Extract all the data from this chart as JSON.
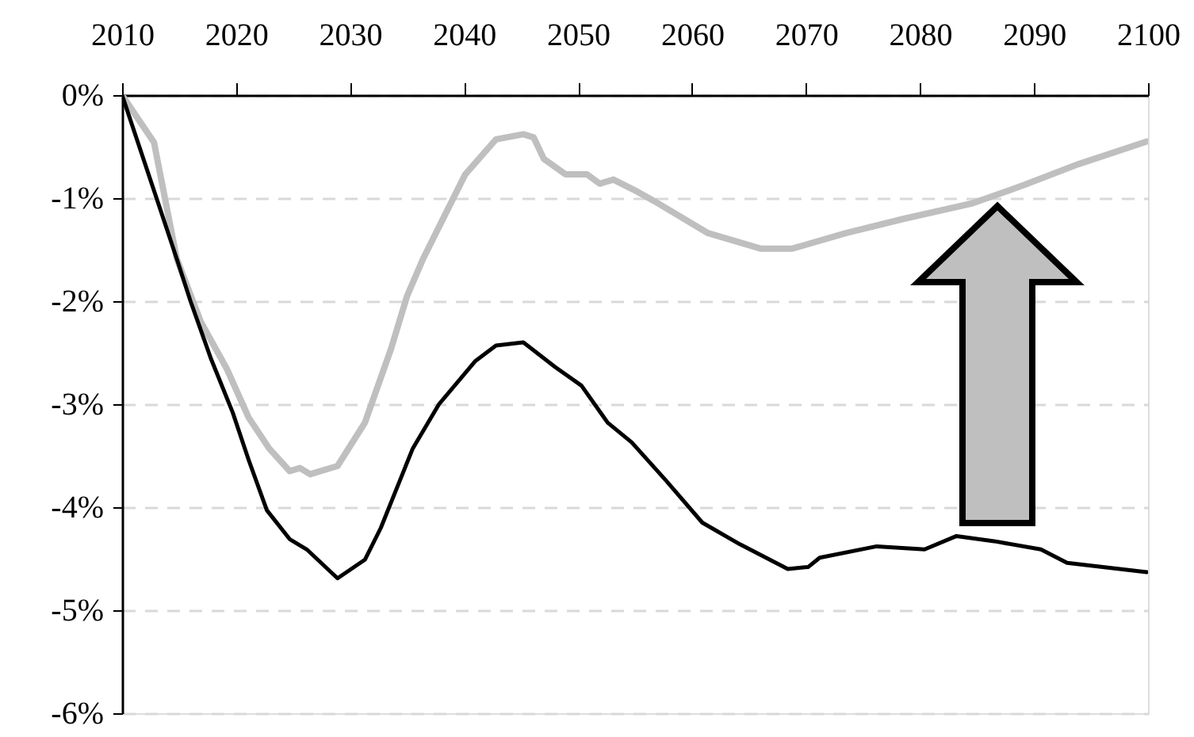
{
  "chart_data": {
    "type": "line",
    "series": [
      {
        "color": "#000000",
        "x": [
          2010,
          2014.8,
          2016,
          2017.8,
          2019.7,
          2021.1,
          2022.7,
          2024.7,
          2026.2,
          2028.9,
          2031.3,
          2032.7,
          2035.5,
          2037.8,
          2041,
          2042.8,
          2045.2,
          2048,
          2050.3,
          2052.6,
          2054.7,
          2057.7,
          2060.9,
          2064.2,
          2068.4,
          2070.2,
          2071.2,
          2076.2,
          2080.4,
          2083.2,
          2086.5,
          2090.6,
          2092.9,
          2099.9
        ],
        "values": [
          0,
          -1.59,
          -2.0,
          -2.56,
          -3.08,
          -3.54,
          -4.03,
          -4.31,
          -4.41,
          -4.69,
          -4.51,
          -4.2,
          -3.43,
          -3.0,
          -2.58,
          -2.43,
          -2.4,
          -2.64,
          -2.82,
          -3.18,
          -3.37,
          -3.74,
          -4.15,
          -4.36,
          -4.6,
          -4.58,
          -4.49,
          -4.38,
          -4.41,
          -4.28,
          -4.33,
          -4.41,
          -4.54,
          -4.63
        ]
      },
      {
        "color": "#bfbfbf",
        "x": [
          2010,
          2012.8,
          2014.8,
          2016.9,
          2019.2,
          2021.1,
          2022.9,
          2024.7,
          2025.6,
          2026.5,
          2028.9,
          2031.3,
          2033.6,
          2035,
          2036.4,
          2038.7,
          2040.1,
          2042.8,
          2045.2,
          2046.1,
          2047,
          2048.9,
          2050.8,
          2051.9,
          2053.1,
          2054.9,
          2056.7,
          2061.4,
          2066,
          2068.8,
          2073.5,
          2078.6,
          2084.6,
          2089.2,
          2093.9,
          2099.9
        ],
        "values": [
          0,
          -0.46,
          -1.59,
          -2.2,
          -2.66,
          -3.13,
          -3.43,
          -3.65,
          -3.62,
          -3.68,
          -3.6,
          -3.18,
          -2.46,
          -1.95,
          -1.59,
          -1.08,
          -0.77,
          -0.43,
          -0.38,
          -0.41,
          -0.62,
          -0.77,
          -0.77,
          -0.86,
          -0.82,
          -0.92,
          -1.03,
          -1.34,
          -1.49,
          -1.49,
          -1.34,
          -1.2,
          -1.05,
          -0.87,
          -0.67,
          -0.45
        ]
      }
    ],
    "xlim": [
      2010,
      2100
    ],
    "xticks": [
      2010,
      2020,
      2030,
      2040,
      2050,
      2060,
      2070,
      2080,
      2090,
      2100
    ],
    "ylim": [
      -6,
      0
    ],
    "yticks": [
      {
        "value": -6,
        "label": "-6%"
      },
      {
        "value": -5,
        "label": "-5%"
      },
      {
        "value": -4,
        "label": "-4%"
      },
      {
        "value": -3,
        "label": "-3%"
      },
      {
        "value": -2,
        "label": "-2%"
      },
      {
        "value": -1,
        "label": "-1%"
      },
      {
        "value": 0,
        "label": "0%"
      }
    ],
    "grid": "y",
    "line_style": "solid"
  }
}
